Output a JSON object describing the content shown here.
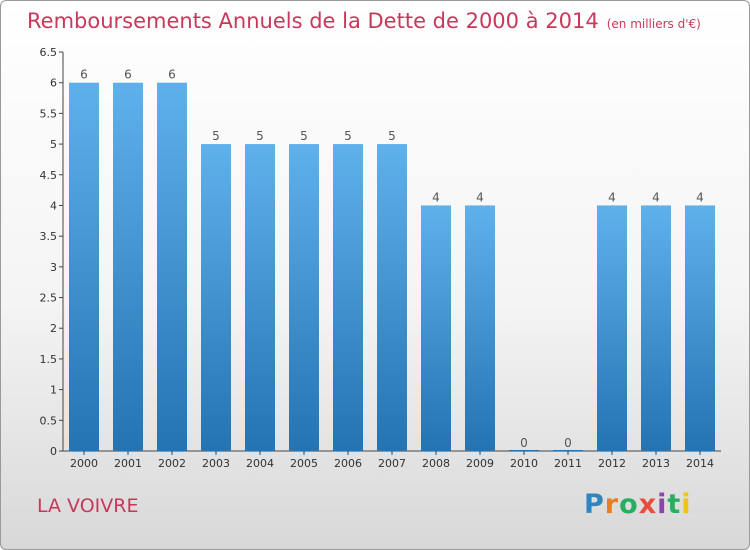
{
  "header": {
    "title": "Remboursements Annuels de la Dette de 2000 à 2014",
    "unit": "(en milliers d'€)"
  },
  "footer": {
    "commune": "LA VOIVRE",
    "logo": "Proxiti"
  },
  "colors": {
    "title": "#c8385a",
    "bar_top": "#5fb1ec",
    "bar_bottom": "#2473b3",
    "logo_letters": [
      "#2e86c1",
      "#e67e22",
      "#27ae60",
      "#e74c3c",
      "#8e44ad",
      "#27ae60",
      "#f1c40f"
    ]
  },
  "chart_data": {
    "type": "bar",
    "title": "Remboursements Annuels de la Dette de 2000 à 2014",
    "subtitle": "(en milliers d'€)",
    "xlabel": "",
    "ylabel": "",
    "categories": [
      "2000",
      "2001",
      "2002",
      "2003",
      "2004",
      "2005",
      "2006",
      "2007",
      "2008",
      "2009",
      "2010",
      "2011",
      "2012",
      "2013",
      "2014"
    ],
    "values": [
      6,
      6,
      6,
      5,
      5,
      5,
      5,
      5,
      4,
      4,
      0,
      0,
      4,
      4,
      4
    ],
    "data_labels": [
      "6",
      "6",
      "6",
      "5",
      "5",
      "5",
      "5",
      "5",
      "4",
      "4",
      "0",
      "0",
      "4",
      "4",
      "4"
    ],
    "ylim": [
      0,
      6.5
    ],
    "yticks": [
      0,
      0.5,
      1,
      1.5,
      2,
      2.5,
      3,
      3.5,
      4,
      4.5,
      5,
      5.5,
      6,
      6.5
    ],
    "ytick_labels": [
      "0",
      "0.5",
      "1",
      "1.5",
      "2",
      "2.5",
      "3",
      "3.5",
      "4",
      "4.5",
      "5",
      "5.5",
      "6",
      "6.5"
    ],
    "grid": false,
    "legend": "none"
  }
}
